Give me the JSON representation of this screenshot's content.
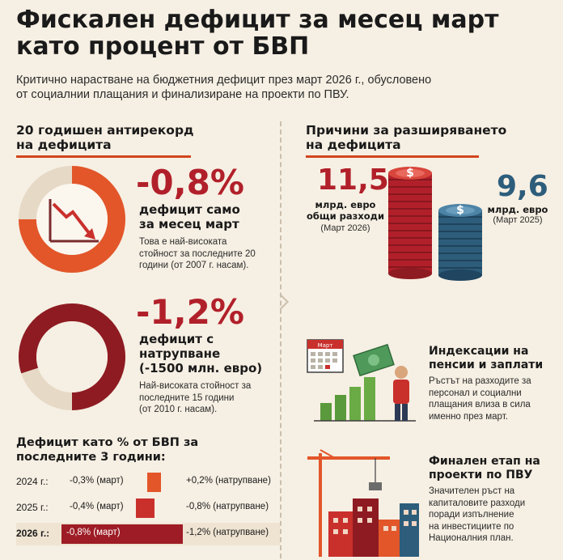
{
  "title_line1": "Фискален дефицит за месец март",
  "title_line2": "като процент от БВП",
  "subtitle_line1": "Критично нарастване на бюджетния дефицит през март 2026 г., обусловено",
  "subtitle_line2": "от социалнии плащания и финализиране на проекти по ПВУ.",
  "left": {
    "heading_line1": "20 годишен антирекорд",
    "heading_line2": "на дефицита",
    "stat1": {
      "value": "-0,8%",
      "label_line1": "дефицит само",
      "label_line2": "за месец март",
      "desc_line1": "Това е най-високата",
      "desc_line2": "стойност за последните 20",
      "desc_line3": "години (от 2007 г. насам).",
      "ring_fraction": 0.75
    },
    "stat2": {
      "value": "-1,2%",
      "label_line1": "дефицит с",
      "label_line2": "натрупване",
      "label_line3": "(-1500 млн. евро)",
      "desc_line1": "Най-високата стойност за",
      "desc_line2": "последните 15 години",
      "desc_line3": "(от 2010 г. насам).",
      "ring_fraction": 0.8
    },
    "bars_heading_line1": "Дефицит като % от БВП за",
    "bars_heading_line2": "последните 3 години:",
    "bars": [
      {
        "year": "2024 г.:",
        "month": "-0,3% (март)",
        "cumulative": "+0,2% (натрупване)",
        "value": 0.3,
        "color": "#e2562a"
      },
      {
        "year": "2025 г.:",
        "month": "-0,4% (март)",
        "cumulative": "-0,8% (натрупване)",
        "value": 0.4,
        "color": "#c9302c"
      },
      {
        "year": "2026 г.:",
        "month": "-0,8% (март)",
        "cumulative": "-1,2% (натрупване)",
        "value": 0.8,
        "color": "#9e1c25"
      }
    ]
  },
  "right": {
    "heading_line1": "Причини за разширяването",
    "heading_line2": "на дефицита",
    "spend2026": {
      "value": "11,5",
      "label_line1": "млрд. евро",
      "label_line2": "общи разходи",
      "sub": "(Март 2026)"
    },
    "spend2025": {
      "value": "9,6",
      "label_line1": "млрд. евро",
      "sub": "(Март 2025)"
    },
    "coin_symbol": "$",
    "calendar_label": "Март",
    "reason1": {
      "head_line1": "Индексации на",
      "head_line2": "пенсии и заплати",
      "text_line1": "Ръстът на разходите за",
      "text_line2": "персонал и социални",
      "text_line3": "плащания влиза в сила",
      "text_line4": "именно през март."
    },
    "reason2": {
      "head_line1": "Финален етап на",
      "head_line2": "проекти по ПВУ",
      "text_line1": "Значителен ръст на",
      "text_line2": "капиталовите разходи",
      "text_line3": "поради изпълнение",
      "text_line4": "на инвестициите по",
      "text_line5": "Националния план."
    }
  },
  "colors": {
    "accent_red": "#b1202a",
    "accent_orange": "#e2562a",
    "dark_red": "#8e1b22",
    "blue_coin": "#2d5d7b",
    "green_bar": "#5a9a3c"
  }
}
